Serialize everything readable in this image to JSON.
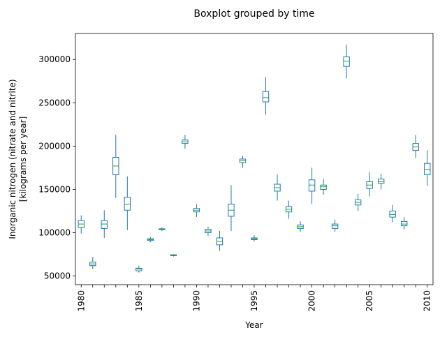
{
  "chart_data": {
    "type": "box",
    "title": "Boxplot grouped by time",
    "xlabel": "Year",
    "ylabel_line1": "Inorganic nitrogen (nitrate and nitrite)",
    "ylabel_line2": "[kilograms per year]",
    "ylim": [
      40000,
      330000
    ],
    "yticks": [
      50000,
      100000,
      150000,
      200000,
      250000,
      300000
    ],
    "xlim": [
      1979.5,
      2010.5
    ],
    "xticks": [
      1980,
      1985,
      1990,
      1995,
      2000,
      2005,
      2010
    ],
    "box_color": "#1f77b4",
    "median_color": "#2ca02c",
    "series": [
      {
        "year": 1980,
        "whislo": 99000,
        "q1": 106000,
        "med": 110000,
        "q3": 114000,
        "whishi": 120000
      },
      {
        "year": 1981,
        "whislo": 58000,
        "q1": 62000,
        "med": 64000,
        "q3": 66000,
        "whishi": 72000
      },
      {
        "year": 1982,
        "whislo": 94000,
        "q1": 105000,
        "med": 110000,
        "q3": 114000,
        "whishi": 126000
      },
      {
        "year": 1983,
        "whislo": 140000,
        "q1": 167000,
        "med": 177000,
        "q3": 187000,
        "whishi": 213000
      },
      {
        "year": 1984,
        "whislo": 103000,
        "q1": 126000,
        "med": 133000,
        "q3": 141000,
        "whishi": 165000
      },
      {
        "year": 1985,
        "whislo": 54000,
        "q1": 56000,
        "med": 58000,
        "q3": 59000,
        "whishi": 62000
      },
      {
        "year": 1986,
        "whislo": 89000,
        "q1": 91000,
        "med": 92000,
        "q3": 93000,
        "whishi": 95000
      },
      {
        "year": 1987,
        "whislo": 102000,
        "q1": 103500,
        "med": 104000,
        "q3": 104500,
        "whishi": 106000
      },
      {
        "year": 1988,
        "whislo": 72500,
        "q1": 73500,
        "med": 74000,
        "q3": 74500,
        "whishi": 75000
      },
      {
        "year": 1989,
        "whislo": 197000,
        "q1": 203000,
        "med": 205000,
        "q3": 207000,
        "whishi": 213000
      },
      {
        "year": 1990,
        "whislo": 118000,
        "q1": 124000,
        "med": 126000,
        "q3": 128000,
        "whishi": 133000
      },
      {
        "year": 1991,
        "whislo": 96000,
        "q1": 100000,
        "med": 102000,
        "q3": 104000,
        "whishi": 107000
      },
      {
        "year": 1992,
        "whislo": 79000,
        "q1": 86000,
        "med": 90000,
        "q3": 94000,
        "whishi": 102000
      },
      {
        "year": 1993,
        "whislo": 102000,
        "q1": 119000,
        "med": 126000,
        "q3": 133000,
        "whishi": 155000
      },
      {
        "year": 1994,
        "whislo": 175000,
        "q1": 181000,
        "med": 183000,
        "q3": 185000,
        "whishi": 189000
      },
      {
        "year": 1995,
        "whislo": 90000,
        "q1": 92000,
        "med": 93000,
        "q3": 94000,
        "whishi": 97000
      },
      {
        "year": 1996,
        "whislo": 236000,
        "q1": 251000,
        "med": 256000,
        "q3": 263000,
        "whishi": 280000
      },
      {
        "year": 1997,
        "whislo": 137000,
        "q1": 148000,
        "med": 152000,
        "q3": 156000,
        "whishi": 167000
      },
      {
        "year": 1998,
        "whislo": 116000,
        "q1": 124000,
        "med": 127000,
        "q3": 130000,
        "whishi": 137000
      },
      {
        "year": 1999,
        "whislo": 101000,
        "q1": 105000,
        "med": 107000,
        "q3": 109000,
        "whishi": 113000
      },
      {
        "year": 2000,
        "whislo": 133000,
        "q1": 148000,
        "med": 155000,
        "q3": 161000,
        "whishi": 175000
      },
      {
        "year": 2001,
        "whislo": 144000,
        "q1": 150000,
        "med": 153000,
        "q3": 155000,
        "whishi": 162000
      },
      {
        "year": 2002,
        "whislo": 101000,
        "q1": 105000,
        "med": 108000,
        "q3": 110000,
        "whishi": 115000
      },
      {
        "year": 2003,
        "whislo": 278000,
        "q1": 292000,
        "med": 298000,
        "q3": 303000,
        "whishi": 317000
      },
      {
        "year": 2004,
        "whislo": 125000,
        "q1": 132000,
        "med": 135000,
        "q3": 138000,
        "whishi": 145000
      },
      {
        "year": 2005,
        "whislo": 142000,
        "q1": 151000,
        "med": 155000,
        "q3": 159000,
        "whishi": 170000
      },
      {
        "year": 2006,
        "whislo": 150000,
        "q1": 157000,
        "med": 159000,
        "q3": 162000,
        "whishi": 168000
      },
      {
        "year": 2007,
        "whislo": 112000,
        "q1": 118000,
        "med": 121000,
        "q3": 125000,
        "whishi": 132000
      },
      {
        "year": 2008,
        "whislo": 104000,
        "q1": 108000,
        "med": 110000,
        "q3": 113000,
        "whishi": 118000
      },
      {
        "year": 2009,
        "whislo": 186000,
        "q1": 195000,
        "med": 199000,
        "q3": 203000,
        "whishi": 213000
      },
      {
        "year": 2010,
        "whislo": 154000,
        "q1": 167000,
        "med": 173000,
        "q3": 180000,
        "whishi": 195000
      }
    ]
  }
}
